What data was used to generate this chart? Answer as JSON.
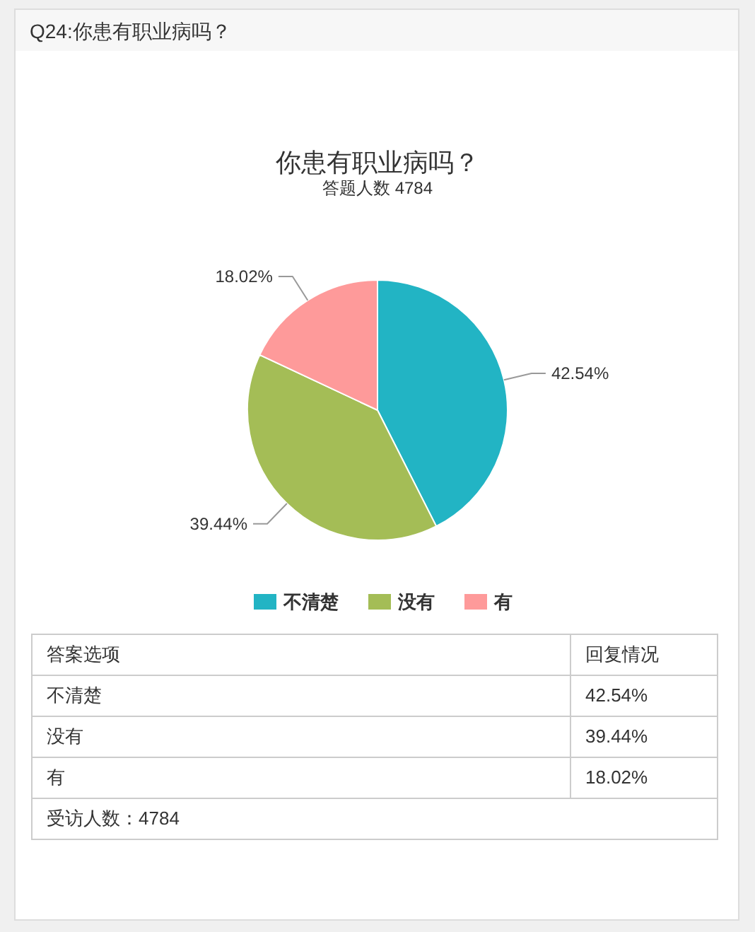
{
  "chart_data": {
    "type": "pie",
    "title": "你患有职业病吗？",
    "subtitle": "答题人数 4784",
    "categories": [
      "不清楚",
      "没有",
      "有"
    ],
    "values": [
      42.54,
      39.44,
      18.02
    ],
    "colors": [
      "#22b4c4",
      "#a4bd56",
      "#fe9a9a"
    ],
    "value_labels": [
      "42.54%",
      "39.44%",
      "18.02%"
    ],
    "legend": "bottom",
    "annotations": [
      "Q24:你患有职业病吗？",
      "答案选项",
      "回复情况",
      "受访人数：4784"
    ]
  }
}
